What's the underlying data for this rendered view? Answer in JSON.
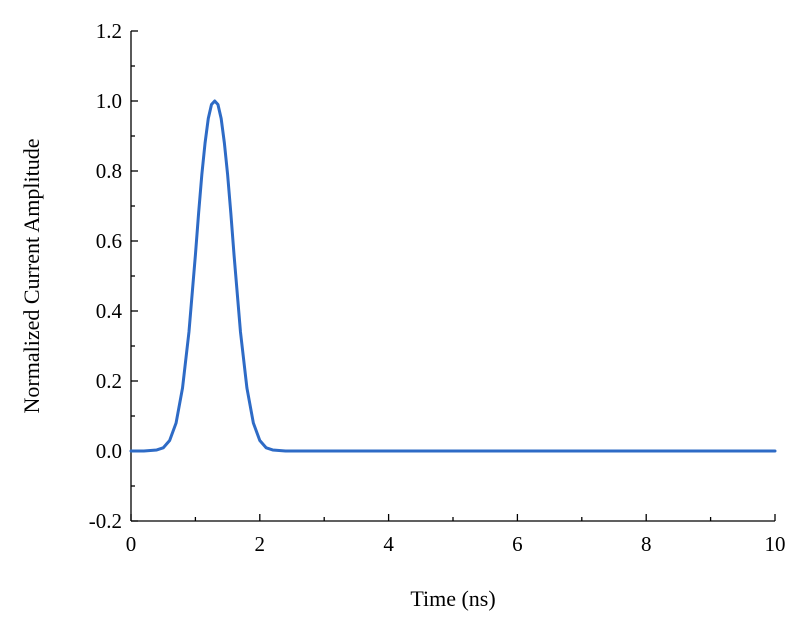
{
  "chart_data": {
    "type": "line",
    "title": "",
    "xlabel": "Time (ns)",
    "ylabel": "Normalized Current Amplitude",
    "xlim": [
      0,
      10
    ],
    "ylim": [
      -0.2,
      1.2
    ],
    "xticks": [
      0,
      2,
      4,
      6,
      8,
      10
    ],
    "xtick_labels": [
      "0",
      "2",
      "4",
      "6",
      "8",
      "10"
    ],
    "yticks": [
      -0.2,
      0.0,
      0.2,
      0.4,
      0.6,
      0.8,
      1.0,
      1.2
    ],
    "ytick_labels": [
      "-0.2",
      "0.0",
      "0.2",
      "0.4",
      "0.6",
      "0.8",
      "1.0",
      "1.2"
    ],
    "grid": false,
    "legend": "none",
    "series": [
      {
        "color": "#2e6bc6",
        "x": [
          0,
          0.2,
          0.4,
          0.5,
          0.6,
          0.7,
          0.8,
          0.9,
          1.0,
          1.05,
          1.1,
          1.15,
          1.2,
          1.25,
          1.3,
          1.35,
          1.4,
          1.45,
          1.5,
          1.55,
          1.6,
          1.7,
          1.8,
          1.9,
          2.0,
          2.1,
          2.2,
          2.4,
          3,
          4,
          5,
          6,
          7,
          8,
          9,
          10
        ],
        "values": [
          0.0,
          0.0,
          0.003,
          0.009,
          0.03,
          0.08,
          0.18,
          0.34,
          0.56,
          0.68,
          0.79,
          0.88,
          0.95,
          0.99,
          1.0,
          0.99,
          0.95,
          0.88,
          0.79,
          0.68,
          0.56,
          0.34,
          0.18,
          0.08,
          0.03,
          0.009,
          0.003,
          0.0,
          0.0,
          0.0,
          0.0,
          0.0,
          0.0,
          0.0,
          0.0,
          0.0
        ]
      }
    ]
  }
}
